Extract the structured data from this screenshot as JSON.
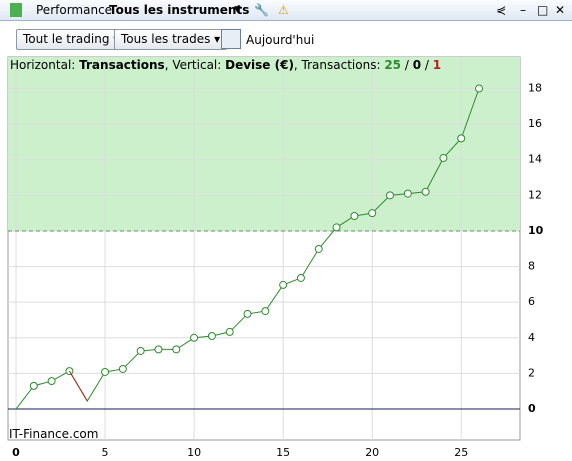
{
  "toolbar": {
    "tab": "Performance",
    "instruments": "Tous les instruments"
  },
  "filters": {
    "trading": "Tout le trading",
    "trades": "Tous les trades",
    "date": "Aujourd'hui"
  },
  "info": {
    "h_label": "Horizontal: ",
    "h_value": "Transactions",
    "sep1": ", Vertical: ",
    "v_value": "Devise (€)",
    "sep2": ", Transactions: ",
    "wins": 25,
    "slash1": " / ",
    "even": 0,
    "slash2": " / ",
    "losses": 1
  },
  "watermark": "IT-Finance.com",
  "chart_data": {
    "type": "line",
    "x": [
      0,
      1,
      2,
      3,
      4,
      5,
      6,
      7,
      8,
      9,
      10,
      11,
      12,
      13,
      14,
      15,
      16,
      17,
      18,
      19,
      20,
      21,
      22,
      23,
      24,
      25,
      26
    ],
    "series": [
      {
        "color": "#2e8b2e",
        "down_color": "#b22222",
        "values": [
          0,
          1.3,
          1.57,
          2.13,
          0.45,
          2.08,
          2.25,
          3.26,
          3.35,
          3.35,
          4.0,
          4.1,
          4.33,
          5.34,
          5.5,
          6.97,
          7.36,
          8.99,
          10.2,
          10.84,
          11.0,
          12.0,
          12.1,
          12.2,
          14.1,
          15.2,
          18.0
        ]
      }
    ],
    "xlim": [
      -0.45,
      28.3
    ],
    "ylim": [
      -1.74,
      19.77
    ],
    "xticks": [
      0,
      5,
      10,
      15,
      20,
      25
    ],
    "yticks": [
      0,
      2,
      4,
      6,
      8,
      10,
      12,
      14,
      16,
      18
    ],
    "threshold": 10,
    "zone_color": "#ccf0cc",
    "grid": true
  }
}
